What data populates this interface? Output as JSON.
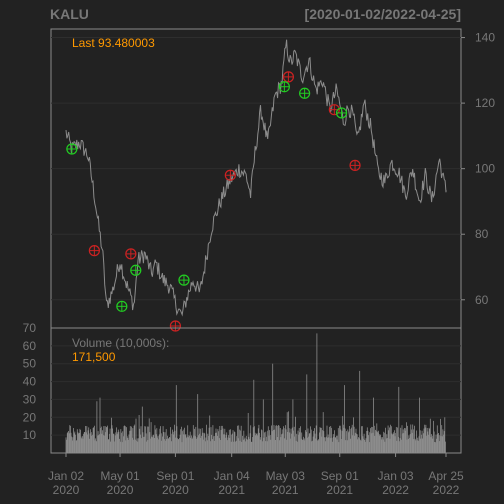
{
  "header": {
    "symbol": "KALU",
    "date_range": "[2020-01-02/2022-04-25]"
  },
  "colors": {
    "background": "#222222",
    "panel_border": "#8a8a8a",
    "grid": "#2e2e2e",
    "price_line": "#8c8c8c",
    "volume_bar": "#8c8c8c",
    "axis_text": "#777777",
    "title_text": "#777777",
    "last_value": "#ff9900",
    "label_text": "#777777",
    "buy_marker": "#22cc22",
    "sell_marker": "#cc2222"
  },
  "chart_data": [
    {
      "type": "line",
      "name": "price",
      "last_label": "Last 93.480003",
      "ylim": [
        52,
        142
      ],
      "yticks": [
        60,
        80,
        100,
        120,
        140
      ],
      "keypoints": [
        [
          "2020-01-02",
          111
        ],
        [
          "2020-01-15",
          106
        ],
        [
          "2020-02-01",
          108
        ],
        [
          "2020-02-20",
          104
        ],
        [
          "2020-03-05",
          92
        ],
        [
          "2020-03-15",
          82
        ],
        [
          "2020-03-23",
          75
        ],
        [
          "2020-04-01",
          58
        ],
        [
          "2020-04-15",
          63
        ],
        [
          "2020-05-01",
          72
        ],
        [
          "2020-05-15",
          65
        ],
        [
          "2020-06-01",
          58
        ],
        [
          "2020-06-10",
          72
        ],
        [
          "2020-06-25",
          74
        ],
        [
          "2020-07-10",
          68
        ],
        [
          "2020-07-20",
          71
        ],
        [
          "2020-08-05",
          66
        ],
        [
          "2020-08-20",
          64
        ],
        [
          "2020-09-01",
          59
        ],
        [
          "2020-09-15",
          55
        ],
        [
          "2020-09-25",
          60
        ],
        [
          "2020-10-10",
          66
        ],
        [
          "2020-10-25",
          62
        ],
        [
          "2020-11-05",
          70
        ],
        [
          "2020-11-20",
          82
        ],
        [
          "2020-12-10",
          90
        ],
        [
          "2020-12-30",
          96
        ],
        [
          "2021-01-20",
          100
        ],
        [
          "2021-02-05",
          98
        ],
        [
          "2021-02-15",
          92
        ],
        [
          "2021-02-25",
          105
        ],
        [
          "2021-03-10",
          118
        ],
        [
          "2021-03-25",
          108
        ],
        [
          "2021-04-10",
          122
        ],
        [
          "2021-04-25",
          126
        ],
        [
          "2021-05-05",
          138
        ],
        [
          "2021-05-15",
          132
        ],
        [
          "2021-05-25",
          135
        ],
        [
          "2021-06-10",
          128
        ],
        [
          "2021-06-25",
          133
        ],
        [
          "2021-07-10",
          124
        ],
        [
          "2021-07-25",
          127
        ],
        [
          "2021-08-10",
          118
        ],
        [
          "2021-08-25",
          124
        ],
        [
          "2021-09-10",
          114
        ],
        [
          "2021-09-20",
          119
        ],
        [
          "2021-10-01",
          116
        ],
        [
          "2021-10-10",
          108
        ],
        [
          "2021-10-25",
          120
        ],
        [
          "2021-11-10",
          112
        ],
        [
          "2021-11-25",
          99
        ],
        [
          "2021-12-10",
          96
        ],
        [
          "2021-12-25",
          102
        ],
        [
          "2022-01-10",
          99
        ],
        [
          "2022-01-25",
          92
        ],
        [
          "2022-02-10",
          100
        ],
        [
          "2022-02-25",
          90
        ],
        [
          "2022-03-10",
          98
        ],
        [
          "2022-03-25",
          90
        ],
        [
          "2022-04-10",
          103
        ],
        [
          "2022-04-20",
          96
        ],
        [
          "2022-04-25",
          93.48
        ]
      ],
      "buy_signals": [
        [
          "2020-01-15",
          106
        ],
        [
          "2020-05-05",
          58
        ],
        [
          "2020-06-05",
          69
        ],
        [
          "2020-09-20",
          66
        ],
        [
          "2021-05-01",
          125
        ],
        [
          "2021-06-15",
          123
        ],
        [
          "2021-09-05",
          117
        ]
      ],
      "sell_signals": [
        [
          "2020-03-05",
          75
        ],
        [
          "2020-05-25",
          74
        ],
        [
          "2020-09-01",
          52
        ],
        [
          "2021-01-01",
          98
        ],
        [
          "2021-05-10",
          128
        ],
        [
          "2021-08-20",
          118
        ],
        [
          "2021-10-05",
          101
        ]
      ]
    },
    {
      "type": "bar",
      "name": "volume",
      "label": "Volume (10,000s):",
      "last_value": "171,500",
      "ylim": [
        0,
        70
      ],
      "yticks": [
        10,
        20,
        30,
        40,
        50,
        60,
        70
      ],
      "baseline": 11,
      "spikes": [
        [
          "2020-03-10",
          29
        ],
        [
          "2020-03-18",
          31
        ],
        [
          "2020-06-20",
          26
        ],
        [
          "2020-09-03",
          38
        ],
        [
          "2020-10-20",
          33
        ],
        [
          "2021-02-22",
          41
        ],
        [
          "2021-03-15",
          30
        ],
        [
          "2021-04-05",
          50
        ],
        [
          "2021-05-20",
          30
        ],
        [
          "2021-06-20",
          44
        ],
        [
          "2021-07-12",
          67
        ],
        [
          "2021-09-12",
          38
        ],
        [
          "2021-10-15",
          46
        ],
        [
          "2021-11-15",
          31
        ],
        [
          "2022-01-10",
          37
        ],
        [
          "2022-02-25",
          31
        ],
        [
          "2022-04-22",
          20
        ]
      ]
    }
  ],
  "xaxis": {
    "range": [
      "2020-01-02",
      "2022-04-25"
    ],
    "ticks": [
      {
        "date": "2020-01-02",
        "line1": "Jan 02",
        "line2": "2020"
      },
      {
        "date": "2020-05-01",
        "line1": "May 01",
        "line2": "2020"
      },
      {
        "date": "2020-09-01",
        "line1": "Sep 01",
        "line2": "2020"
      },
      {
        "date": "2021-01-04",
        "line1": "Jan 04",
        "line2": "2021"
      },
      {
        "date": "2021-05-03",
        "line1": "May 03",
        "line2": "2021"
      },
      {
        "date": "2021-09-01",
        "line1": "Sep 01",
        "line2": "2021"
      },
      {
        "date": "2022-01-03",
        "line1": "Jan 03",
        "line2": "2022"
      },
      {
        "date": "2022-04-25",
        "line1": "Apr 25",
        "line2": "2022"
      }
    ]
  }
}
